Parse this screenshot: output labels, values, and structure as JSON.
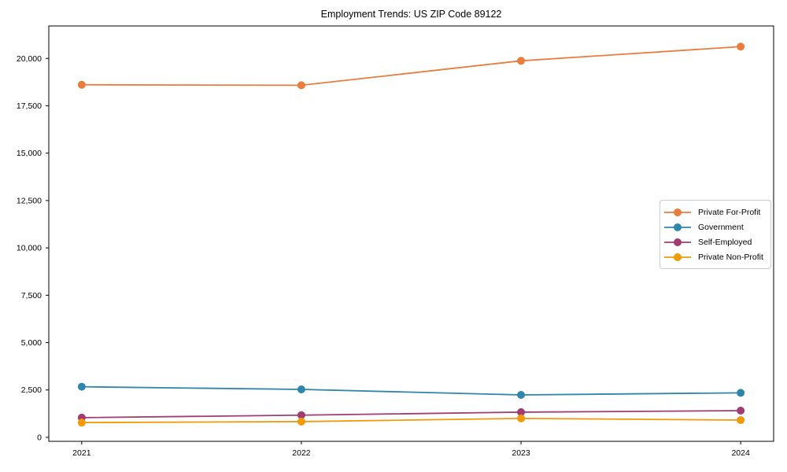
{
  "chart_data": {
    "type": "line",
    "title": "Employment Trends: US ZIP Code 89122",
    "categories": [
      "2021",
      "2022",
      "2023",
      "2024"
    ],
    "series": [
      {
        "name": "Private For-Profit",
        "color": "#E87D3C",
        "values": [
          18610,
          18585,
          19875,
          20625
        ]
      },
      {
        "name": "Government",
        "color": "#2E86AB",
        "values": [
          2670,
          2530,
          2240,
          2350
        ]
      },
      {
        "name": "Self-Employed",
        "color": "#A23B72",
        "values": [
          1040,
          1170,
          1330,
          1410
        ]
      },
      {
        "name": "Private Non-Profit",
        "color": "#F09A0A",
        "values": [
          780,
          830,
          1000,
          910
        ]
      }
    ],
    "xlabel": "",
    "ylabel": "",
    "xlim": [
      -0.15,
      3.15
    ],
    "ylim": [
      -210,
      21715
    ],
    "y_ticks": [
      {
        "v": 0,
        "label": "0"
      },
      {
        "v": 2500,
        "label": "2,500"
      },
      {
        "v": 5000,
        "label": "5,000"
      },
      {
        "v": 7500,
        "label": "7,500"
      },
      {
        "v": 10000,
        "label": "10,000"
      },
      {
        "v": 12500,
        "label": "12,500"
      },
      {
        "v": 15000,
        "label": "15,000"
      },
      {
        "v": 17500,
        "label": "17,500"
      },
      {
        "v": 20000,
        "label": "20,000"
      }
    ],
    "grid": false,
    "legend_position": "right-center",
    "axis_color": "#000000",
    "marker": "circle",
    "marker_radius": 5,
    "line_width": 1.8
  }
}
